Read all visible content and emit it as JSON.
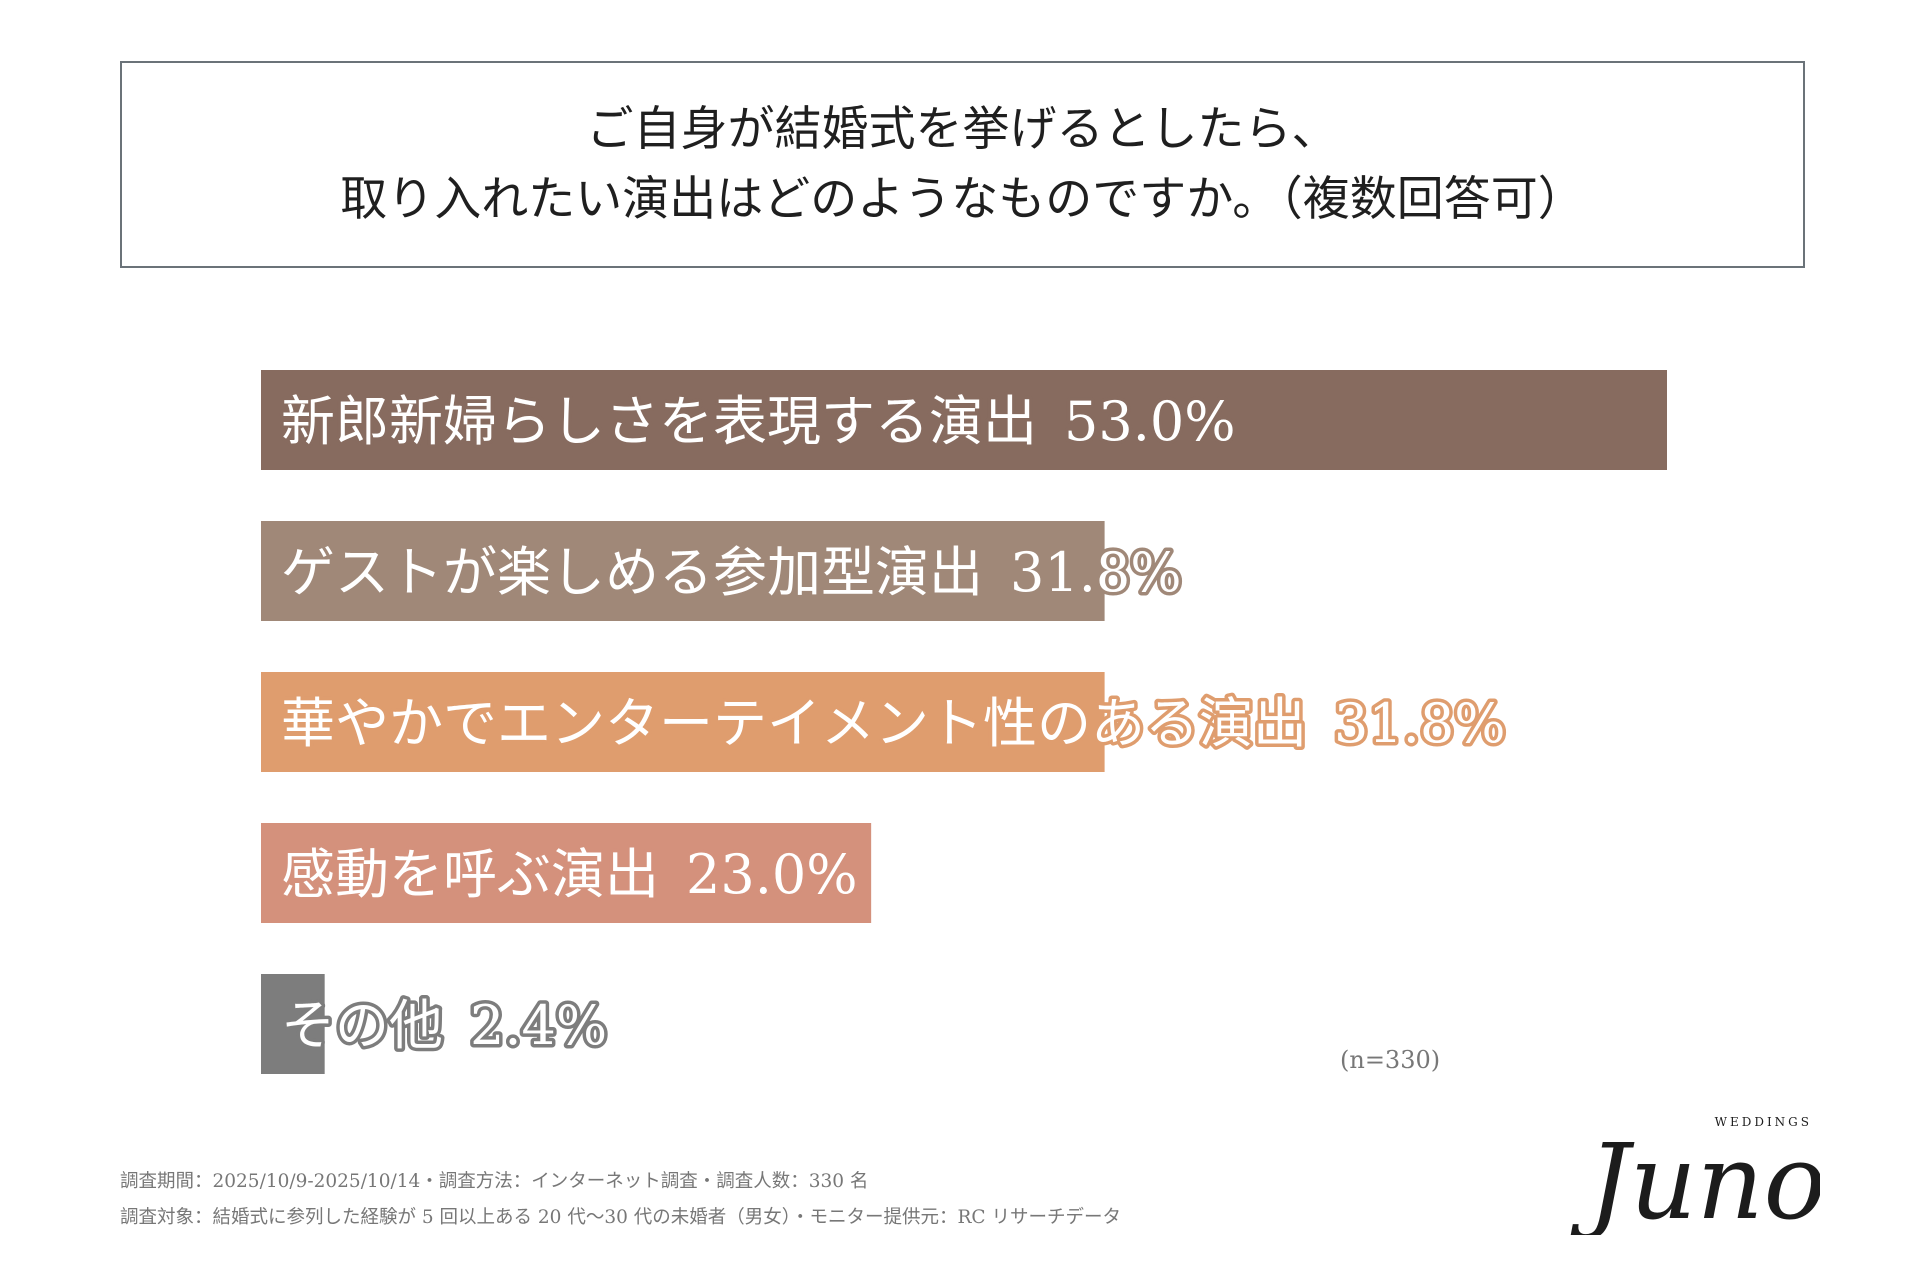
{
  "title": {
    "line1": "ご自身が結婚式を挙げるとしたら、",
    "line2": "取り入れたい演出はどのようなものですか。（複数回答可）"
  },
  "chart_data": {
    "type": "bar",
    "orientation": "horizontal",
    "unit": "%",
    "xlim": [
      0,
      53.0
    ],
    "categories": [
      "新郎新婦らしさを表現する演出",
      "ゲストが楽しめる参加型演出",
      "華やかでエンターテイメント性のある演出",
      "感動を呼ぶ演出",
      "その他"
    ],
    "values": [
      53.0,
      31.8,
      31.8,
      23.0,
      2.4
    ],
    "value_labels": [
      "53.0%",
      "31.8%",
      "31.8%",
      "23.0%",
      "2.4%"
    ],
    "colors": [
      "#876b5f",
      "#a08878",
      "#df9d6e",
      "#d4917c",
      "#7d7d7d"
    ],
    "grid": false,
    "legend": "none"
  },
  "sample_size": "(n=330)",
  "footnotes": [
    "調査期間：2025/10/9-2025/10/14・調査方法：インターネット調査・調査人数：330 名",
    "調査対象：結婚式に参列した経験が 5 回以上ある 20 代～30 代の未婚者（男女）・モニター提供元：RC リサーチデータ"
  ],
  "brand": {
    "name": "Juno",
    "tagline": "WEDDINGS"
  }
}
